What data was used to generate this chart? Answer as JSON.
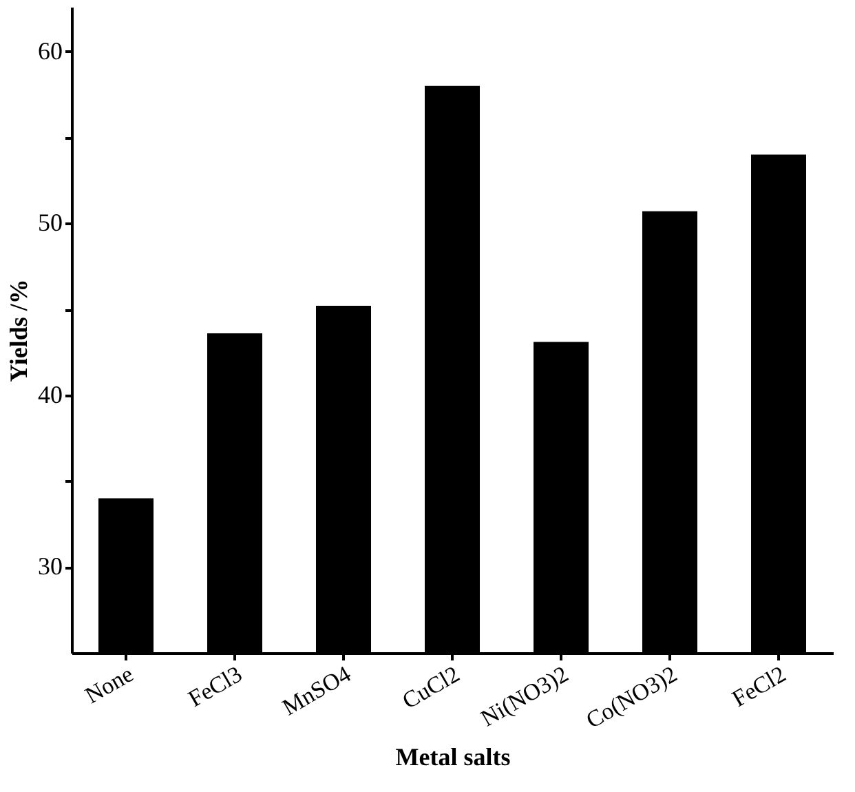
{
  "chart_data": {
    "type": "bar",
    "xlabel": "Metal salts",
    "ylabel": "Yields /%",
    "categories": [
      "None",
      "FeCl3",
      "MnSO4",
      "CuCl2",
      "Ni(NO3)2",
      "Co(NO3)2",
      "FeCl2"
    ],
    "values": [
      34.0,
      43.6,
      45.2,
      58.0,
      43.1,
      50.7,
      54.0
    ],
    "color": "#000000",
    "ylim": [
      25,
      62.6
    ],
    "yticks": [
      {
        "value": 30,
        "label": "30"
      },
      {
        "value": 35,
        "label": null
      },
      {
        "value": 40,
        "label": "40"
      },
      {
        "value": 45,
        "label": null
      },
      {
        "value": 50,
        "label": "50"
      },
      {
        "value": 55,
        "label": null
      },
      {
        "value": 60,
        "label": "60"
      }
    ],
    "grid": false
  }
}
